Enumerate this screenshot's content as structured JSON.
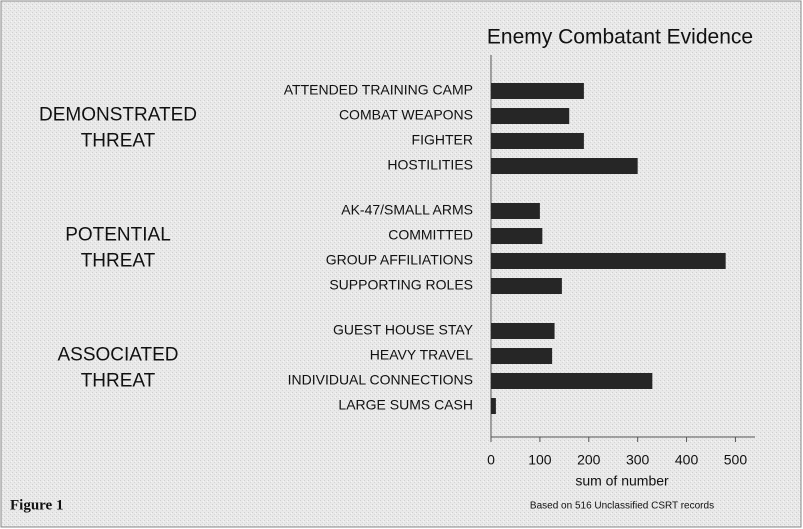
{
  "chart_data": {
    "type": "bar",
    "title": "Enemy Combatant Evidence",
    "groups": [
      {
        "name_lines": [
          "DEMONSTRATED",
          "THREAT"
        ],
        "categories": [
          "ATTENDED TRAINING CAMP",
          "COMBAT WEAPONS",
          "FIGHTER",
          "HOSTILITIES"
        ],
        "values": [
          190,
          160,
          190,
          300
        ]
      },
      {
        "name_lines": [
          "POTENTIAL",
          "THREAT"
        ],
        "categories": [
          "AK-47/SMALL ARMS",
          "COMMITTED",
          "GROUP AFFILIATIONS",
          "SUPPORTING ROLES"
        ],
        "values": [
          100,
          105,
          480,
          145
        ]
      },
      {
        "name_lines": [
          "ASSOCIATED",
          "THREAT"
        ],
        "categories": [
          "GUEST HOUSE STAY",
          "HEAVY TRAVEL",
          "INDIVIDUAL CONNECTIONS",
          "LARGE SUMS CASH"
        ],
        "values": [
          130,
          125,
          330,
          10
        ]
      }
    ],
    "color": "#262626",
    "xlabel": "sum of number",
    "xlim": [
      0,
      540
    ],
    "xticks": [
      0,
      100,
      200,
      300,
      400,
      500
    ],
    "note": "Based on 516 Unclassified CSRT records",
    "figure_label": "Figure 1"
  }
}
